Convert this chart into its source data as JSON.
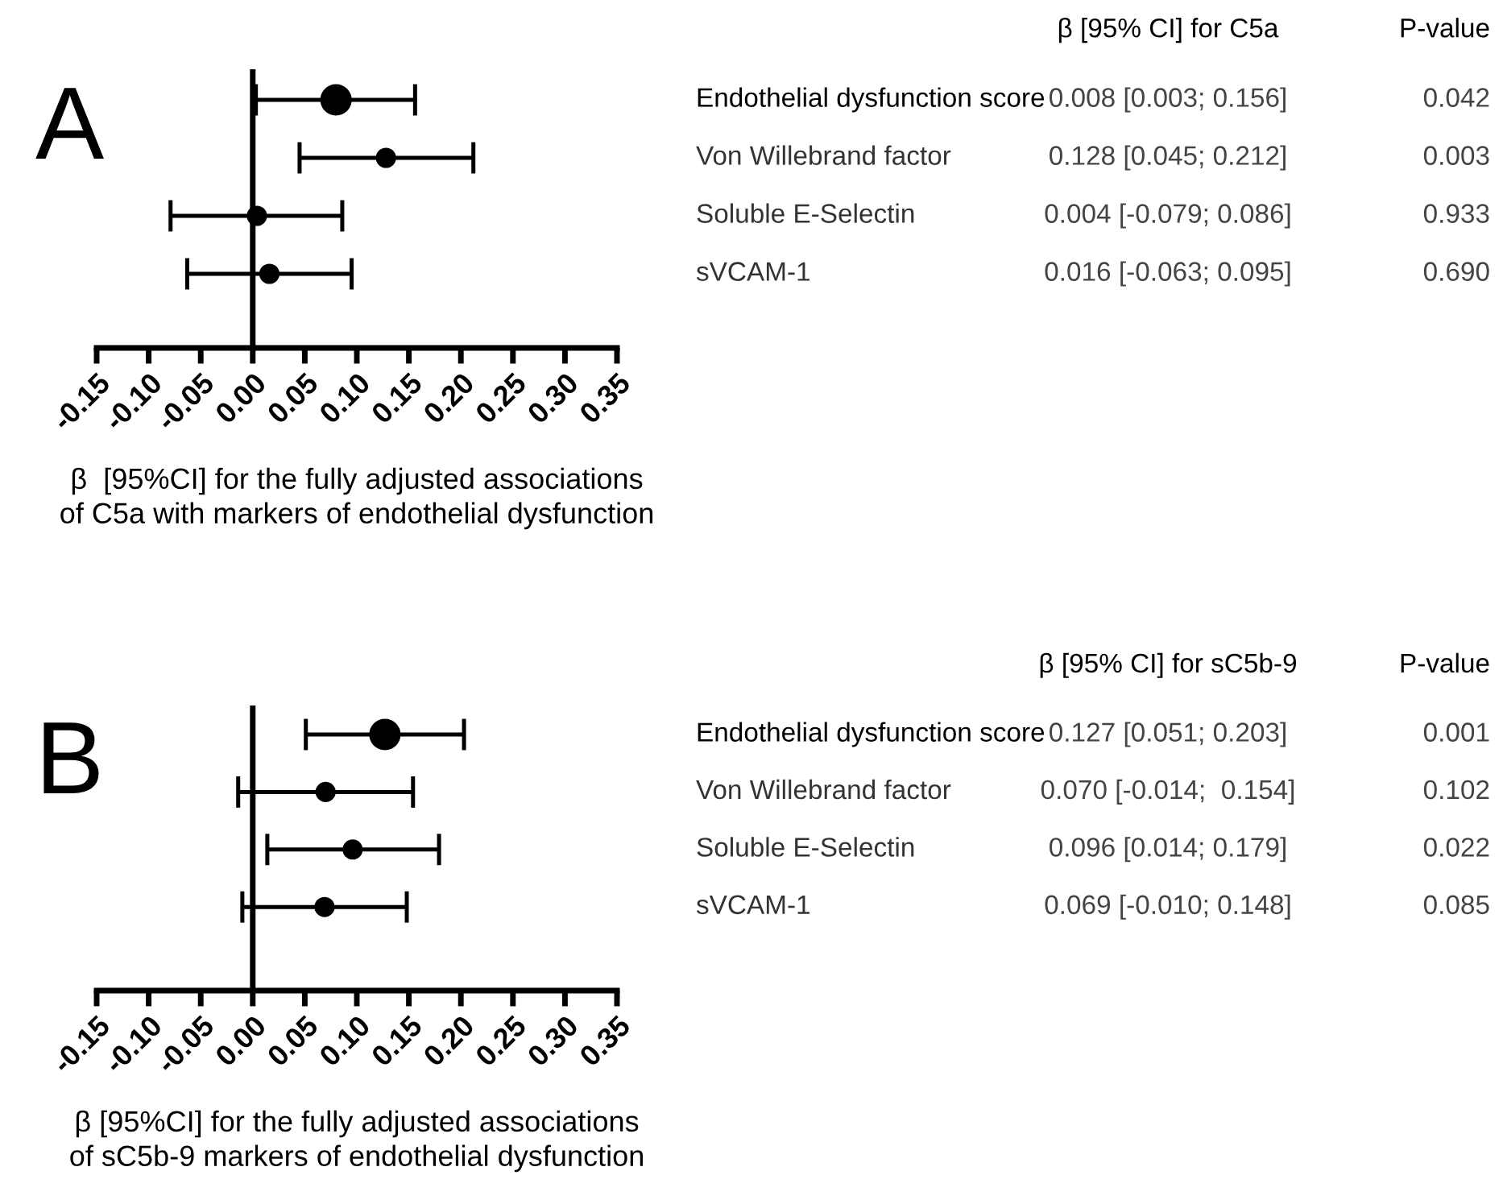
{
  "chart_data": [
    {
      "type": "scatter",
      "orientation": "horizontal",
      "title": "A",
      "xlabel": "β  [95%CI] for the fully adjusted associations\nof C5a with markers of endothelial dysfunction",
      "categories": [
        "Endothelial dysfunction score",
        "Von Willebrand factor",
        "Soluble E-Selectin",
        "sVCAM-1"
      ],
      "values": [
        0.08,
        0.128,
        0.004,
        0.016
      ],
      "sizes": [
        1,
        0.38,
        0.38,
        0.38
      ],
      "errors": [
        [
          0.003,
          0.156
        ],
        [
          0.045,
          0.212
        ],
        [
          -0.079,
          0.086
        ],
        [
          -0.063,
          0.095
        ]
      ],
      "value_labels": [
        null,
        "0.128 [0.045; 0.212]",
        "0.004 [-0.079; 0.086]",
        "0.016 [-0.063; 0.095]"
      ],
      "annotations": [
        "β [95% CI] for C5a",
        "P-value",
        "0.042",
        "0.003",
        "0.933",
        "0.690",
        "0.008 [0.003; 0.156]"
      ],
      "color": "#000000",
      "marker": "circle",
      "grid": false,
      "legend": false,
      "ref_lines": [
        {
          "axis": "x",
          "value": 0,
          "color": "#000000"
        }
      ],
      "xlim": [
        -0.15,
        0.35
      ],
      "xticks": [
        {
          "value": -0.15,
          "label": "-0.15"
        },
        {
          "value": -0.1,
          "label": "-0.10"
        },
        {
          "value": -0.05,
          "label": "-0.05"
        },
        {
          "value": 0,
          "label": "0.00"
        },
        {
          "value": 0.05,
          "label": "0.05"
        },
        {
          "value": 0.1,
          "label": "0.10"
        },
        {
          "value": 0.15,
          "label": "0.15"
        },
        {
          "value": 0.2,
          "label": "0.20"
        },
        {
          "value": 0.25,
          "label": "0.25"
        },
        {
          "value": 0.3,
          "label": "0.30"
        },
        {
          "value": 0.35,
          "label": "0.35"
        }
      ]
    },
    {
      "type": "scatter",
      "orientation": "horizontal",
      "title": "B",
      "ref_lines": [
        {
          "axis": "x",
          "value": 0,
          "color": "#000000"
        }
      ],
      "xlabel": "β [95%CI] for the fully adjusted associations\nof sC5b-9 markers of endothelial dysfunction",
      "categories": [
        "Endothelial dysfunction score",
        "Von Willebrand factor",
        "Soluble E-Selectin",
        "sVCAM-1"
      ],
      "values": [
        0.127,
        0.07,
        0.096,
        0.069
      ],
      "sizes": [
        1,
        0.38,
        0.38,
        0.38
      ],
      "errors": [
        [
          0.051,
          0.203
        ],
        [
          -0.014,
          0.154
        ],
        [
          0.014,
          0.179
        ],
        [
          -0.01,
          0.148
        ]
      ],
      "value_labels": [
        "0.127 [0.051; 0.203]",
        "0.070 [-0.014;  0.154]",
        "0.096 [0.014; 0.179]",
        "0.069 [-0.010; 0.148]"
      ],
      "annotations": [
        "β [95% CI] for sC5b-9",
        "P-value",
        "0.001",
        "0.102",
        "0.022",
        "0.085"
      ],
      "color": "#000000",
      "marker": "circle",
      "grid": false,
      "legend": false,
      "xlim": [
        -0.15,
        0.35
      ],
      "xticks": [
        {
          "value": -0.15,
          "label": "-0.15"
        },
        {
          "value": -0.1,
          "label": "-0.10"
        },
        {
          "value": -0.05,
          "label": "-0.05"
        },
        {
          "value": 0,
          "label": "0.00"
        },
        {
          "value": 0.05,
          "label": "0.05"
        },
        {
          "value": 0.1,
          "label": "0.10"
        },
        {
          "value": 0.15,
          "label": "0.15"
        },
        {
          "value": 0.2,
          "label": "0.20"
        },
        {
          "value": 0.25,
          "label": "0.25"
        },
        {
          "value": 0.3,
          "label": "0.30"
        },
        {
          "value": 0.35,
          "label": "0.35"
        }
      ]
    }
  ]
}
